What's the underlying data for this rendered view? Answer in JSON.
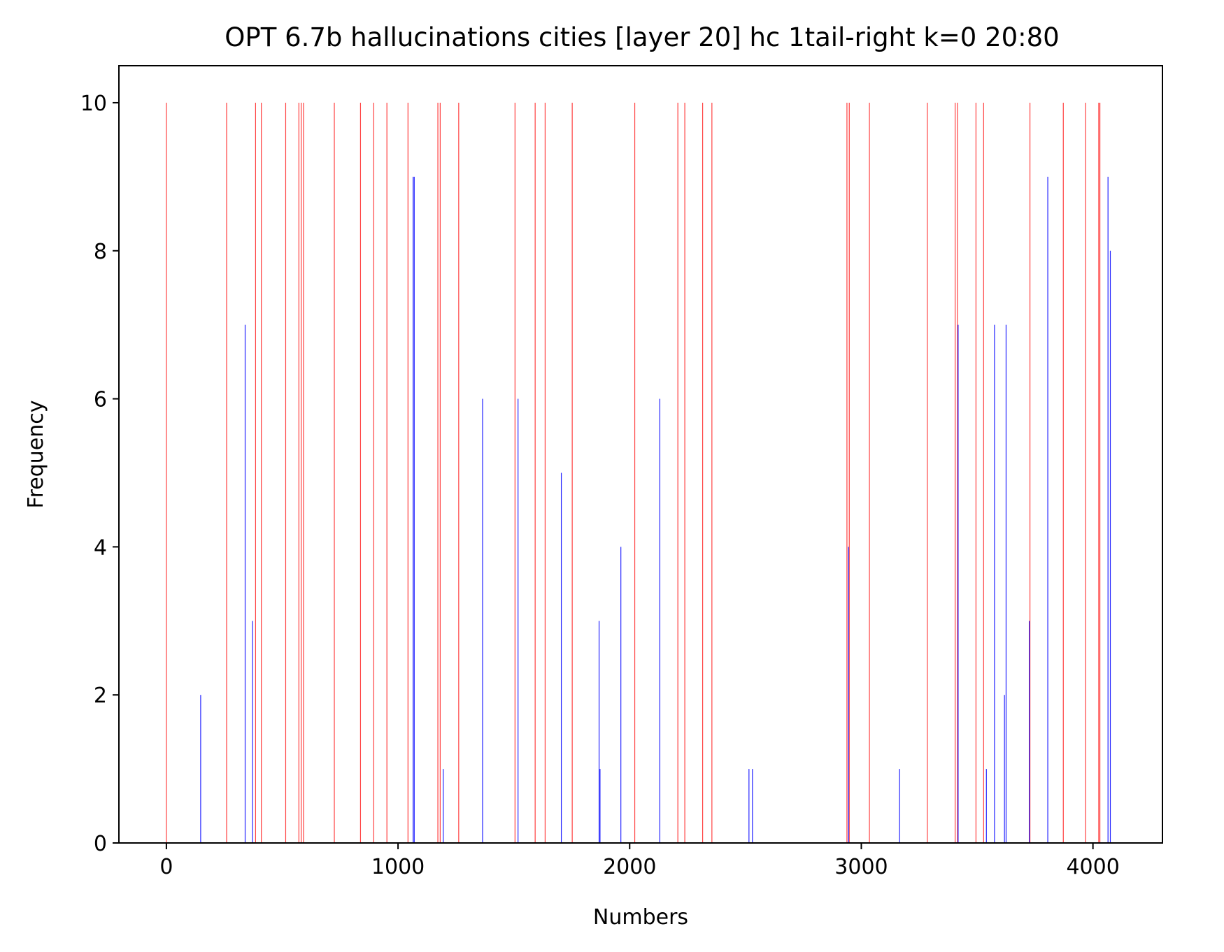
{
  "chart_data": {
    "type": "bar",
    "title": "OPT 6.7b hallucinations cities [layer 20] hc 1tail-right k=0 20:80",
    "xlabel": "Numbers",
    "ylabel": "Frequency",
    "xlim": [
      -205,
      4300
    ],
    "ylim": [
      0,
      10.5
    ],
    "xticks": [
      0,
      1000,
      2000,
      3000,
      4000
    ],
    "xtick_labels": [
      "0",
      "1000",
      "2000",
      "3000",
      "4000"
    ],
    "yticks": [
      0,
      2,
      4,
      6,
      8,
      10
    ],
    "ytick_labels": [
      "0",
      "2",
      "4",
      "6",
      "8",
      "10"
    ],
    "grid": false,
    "legend": "none",
    "series": [
      {
        "color": "#ff0000",
        "points": [
          {
            "x": 0,
            "y": 10
          },
          {
            "x": 260,
            "y": 10
          },
          {
            "x": 385,
            "y": 10
          },
          {
            "x": 410,
            "y": 10
          },
          {
            "x": 515,
            "y": 10
          },
          {
            "x": 572,
            "y": 10
          },
          {
            "x": 582,
            "y": 10
          },
          {
            "x": 592,
            "y": 10
          },
          {
            "x": 725,
            "y": 10
          },
          {
            "x": 838,
            "y": 10
          },
          {
            "x": 895,
            "y": 10
          },
          {
            "x": 952,
            "y": 10
          },
          {
            "x": 1043,
            "y": 10
          },
          {
            "x": 1172,
            "y": 10
          },
          {
            "x": 1182,
            "y": 10
          },
          {
            "x": 1262,
            "y": 10
          },
          {
            "x": 1505,
            "y": 10
          },
          {
            "x": 1592,
            "y": 10
          },
          {
            "x": 1635,
            "y": 10
          },
          {
            "x": 1752,
            "y": 10
          },
          {
            "x": 2022,
            "y": 10
          },
          {
            "x": 2208,
            "y": 10
          },
          {
            "x": 2238,
            "y": 10
          },
          {
            "x": 2315,
            "y": 10
          },
          {
            "x": 2355,
            "y": 10
          },
          {
            "x": 2938,
            "y": 10
          },
          {
            "x": 2948,
            "y": 10
          },
          {
            "x": 3035,
            "y": 10
          },
          {
            "x": 3285,
            "y": 10
          },
          {
            "x": 3405,
            "y": 10
          },
          {
            "x": 3415,
            "y": 10
          },
          {
            "x": 3495,
            "y": 10
          },
          {
            "x": 3528,
            "y": 10
          },
          {
            "x": 3728,
            "y": 10
          },
          {
            "x": 3872,
            "y": 10
          },
          {
            "x": 3968,
            "y": 10
          },
          {
            "x": 4025,
            "y": 10
          },
          {
            "x": 4030,
            "y": 10
          }
        ]
      },
      {
        "color": "#0000ff",
        "points": [
          {
            "x": 148,
            "y": 2
          },
          {
            "x": 340,
            "y": 7
          },
          {
            "x": 372,
            "y": 3
          },
          {
            "x": 1065,
            "y": 9
          },
          {
            "x": 1070,
            "y": 9
          },
          {
            "x": 1195,
            "y": 1
          },
          {
            "x": 1365,
            "y": 6
          },
          {
            "x": 1518,
            "y": 6
          },
          {
            "x": 1705,
            "y": 5
          },
          {
            "x": 1868,
            "y": 3
          },
          {
            "x": 1872,
            "y": 1
          },
          {
            "x": 1962,
            "y": 4
          },
          {
            "x": 2130,
            "y": 6
          },
          {
            "x": 2515,
            "y": 1
          },
          {
            "x": 2530,
            "y": 1
          },
          {
            "x": 2945,
            "y": 4
          },
          {
            "x": 3165,
            "y": 1
          },
          {
            "x": 3418,
            "y": 7
          },
          {
            "x": 3540,
            "y": 1
          },
          {
            "x": 3575,
            "y": 7
          },
          {
            "x": 3618,
            "y": 2
          },
          {
            "x": 3625,
            "y": 7
          },
          {
            "x": 3725,
            "y": 3
          },
          {
            "x": 3805,
            "y": 9
          },
          {
            "x": 4065,
            "y": 9
          },
          {
            "x": 4075,
            "y": 8
          }
        ]
      }
    ]
  }
}
